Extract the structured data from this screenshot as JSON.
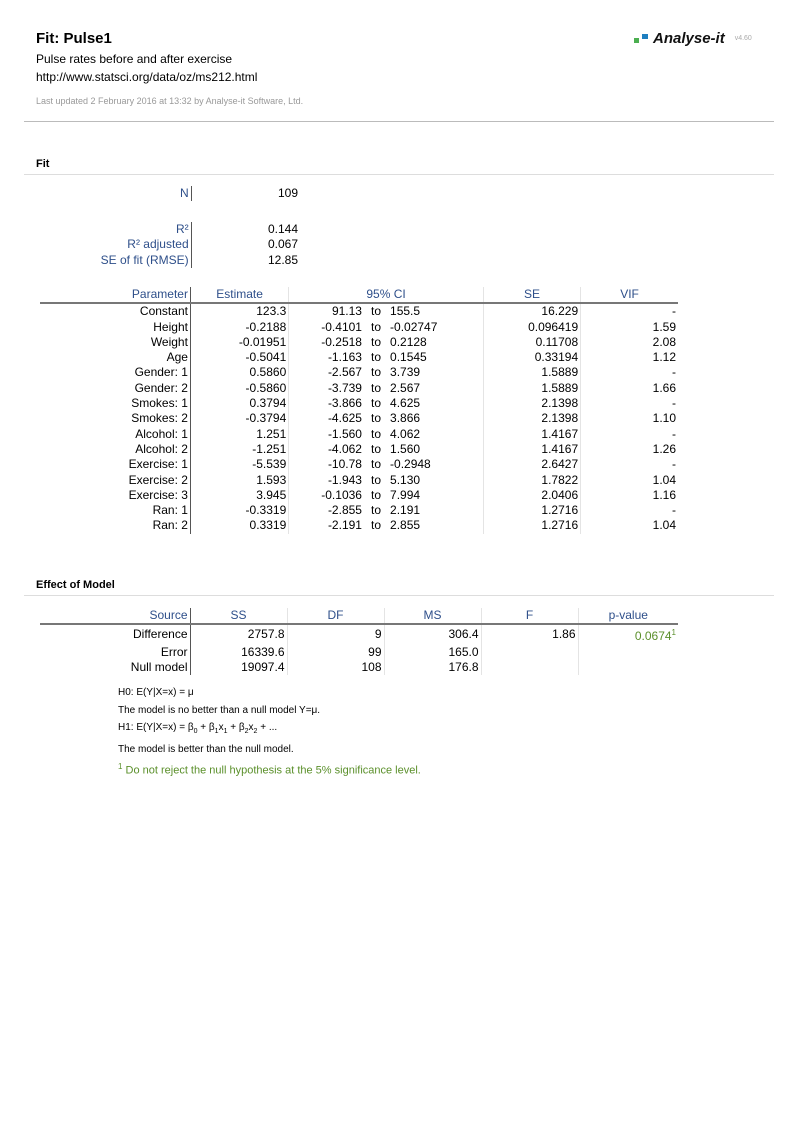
{
  "header": {
    "title": "Fit: Pulse1",
    "subtitle": "Pulse rates before and after exercise",
    "url": "http://www.statsci.org/data/oz/ms212.html",
    "updated": "Last updated 2 February 2016 at 13:32 by Analyse-it Software, Ltd.",
    "logo_text": "Analyse-it",
    "version": "v4.60",
    "colors": {
      "logo_green": "#4caf50",
      "logo_blue": "#1e7fc0"
    }
  },
  "fit": {
    "section": "Fit",
    "n_label": "N",
    "n_value": "109",
    "stats": [
      {
        "label": "R²",
        "value": "0.144"
      },
      {
        "label": "R² adjusted",
        "value": "0.067"
      },
      {
        "label": "SE of fit (RMSE)",
        "value": "12.85"
      }
    ],
    "columns": [
      "Parameter",
      "Estimate",
      "95% CI",
      "SE",
      "VIF"
    ],
    "rows": [
      {
        "p": "Constant",
        "est": "123.3",
        "lo": "91.13",
        "hi": "155.5",
        "se": "16.229",
        "vif": "-"
      },
      {
        "p": "Height",
        "est": "-0.2188",
        "lo": "-0.4101",
        "hi": "-0.02747",
        "se": "0.096419",
        "vif": "1.59"
      },
      {
        "p": "Weight",
        "est": "-0.01951",
        "lo": "-0.2518",
        "hi": "0.2128",
        "se": "0.11708",
        "vif": "2.08"
      },
      {
        "p": "Age",
        "est": "-0.5041",
        "lo": "-1.163",
        "hi": "0.1545",
        "se": "0.33194",
        "vif": "1.12"
      },
      {
        "p": "Gender: 1",
        "est": "0.5860",
        "lo": "-2.567",
        "hi": "3.739",
        "se": "1.5889",
        "vif": "-"
      },
      {
        "p": "Gender: 2",
        "est": "-0.5860",
        "lo": "-3.739",
        "hi": "2.567",
        "se": "1.5889",
        "vif": "1.66"
      },
      {
        "p": "Smokes: 1",
        "est": "0.3794",
        "lo": "-3.866",
        "hi": "4.625",
        "se": "2.1398",
        "vif": "-"
      },
      {
        "p": "Smokes: 2",
        "est": "-0.3794",
        "lo": "-4.625",
        "hi": "3.866",
        "se": "2.1398",
        "vif": "1.10"
      },
      {
        "p": "Alcohol: 1",
        "est": "1.251",
        "lo": "-1.560",
        "hi": "4.062",
        "se": "1.4167",
        "vif": "-"
      },
      {
        "p": "Alcohol: 2",
        "est": "-1.251",
        "lo": "-4.062",
        "hi": "1.560",
        "se": "1.4167",
        "vif": "1.26"
      },
      {
        "p": "Exercise: 1",
        "est": "-5.539",
        "lo": "-10.78",
        "hi": "-0.2948",
        "se": "2.6427",
        "vif": "-"
      },
      {
        "p": "Exercise: 2",
        "est": "1.593",
        "lo": "-1.943",
        "hi": "5.130",
        "se": "1.7822",
        "vif": "1.04"
      },
      {
        "p": "Exercise: 3",
        "est": "3.945",
        "lo": "-0.1036",
        "hi": "7.994",
        "se": "2.0406",
        "vif": "1.16"
      },
      {
        "p": "Ran: 1",
        "est": "-0.3319",
        "lo": "-2.855",
        "hi": "2.191",
        "se": "1.2716",
        "vif": "-"
      },
      {
        "p": "Ran: 2",
        "est": "0.3319",
        "lo": "-2.191",
        "hi": "2.855",
        "se": "1.2716",
        "vif": "1.04"
      }
    ],
    "ci_to": "to"
  },
  "effect": {
    "section": "Effect of Model",
    "columns": [
      "Source",
      "SS",
      "DF",
      "MS",
      "F",
      "p-value"
    ],
    "rows": [
      {
        "s": "Difference",
        "ss": "2757.8",
        "df": "9",
        "ms": "306.4",
        "f": "1.86",
        "p": "0.0674",
        "fn": "1"
      },
      {
        "s": "Error",
        "ss": "16339.6",
        "df": "99",
        "ms": "165.0",
        "f": "",
        "p": "",
        "fn": ""
      },
      {
        "s": "Null model",
        "ss": "19097.4",
        "df": "108",
        "ms": "176.8",
        "f": "",
        "p": "",
        "fn": ""
      }
    ],
    "h0": "H0: E(Y|X=x) = μ",
    "h0_text": "The model is no better than a null model Y=μ.",
    "h1_prefix": "H1: E(Y|X=x) = β",
    "h1_text": "The model is better than the null model.",
    "footnote_mark": "1",
    "footnote": "Do not reject the null hypothesis at the 5% significance level."
  }
}
